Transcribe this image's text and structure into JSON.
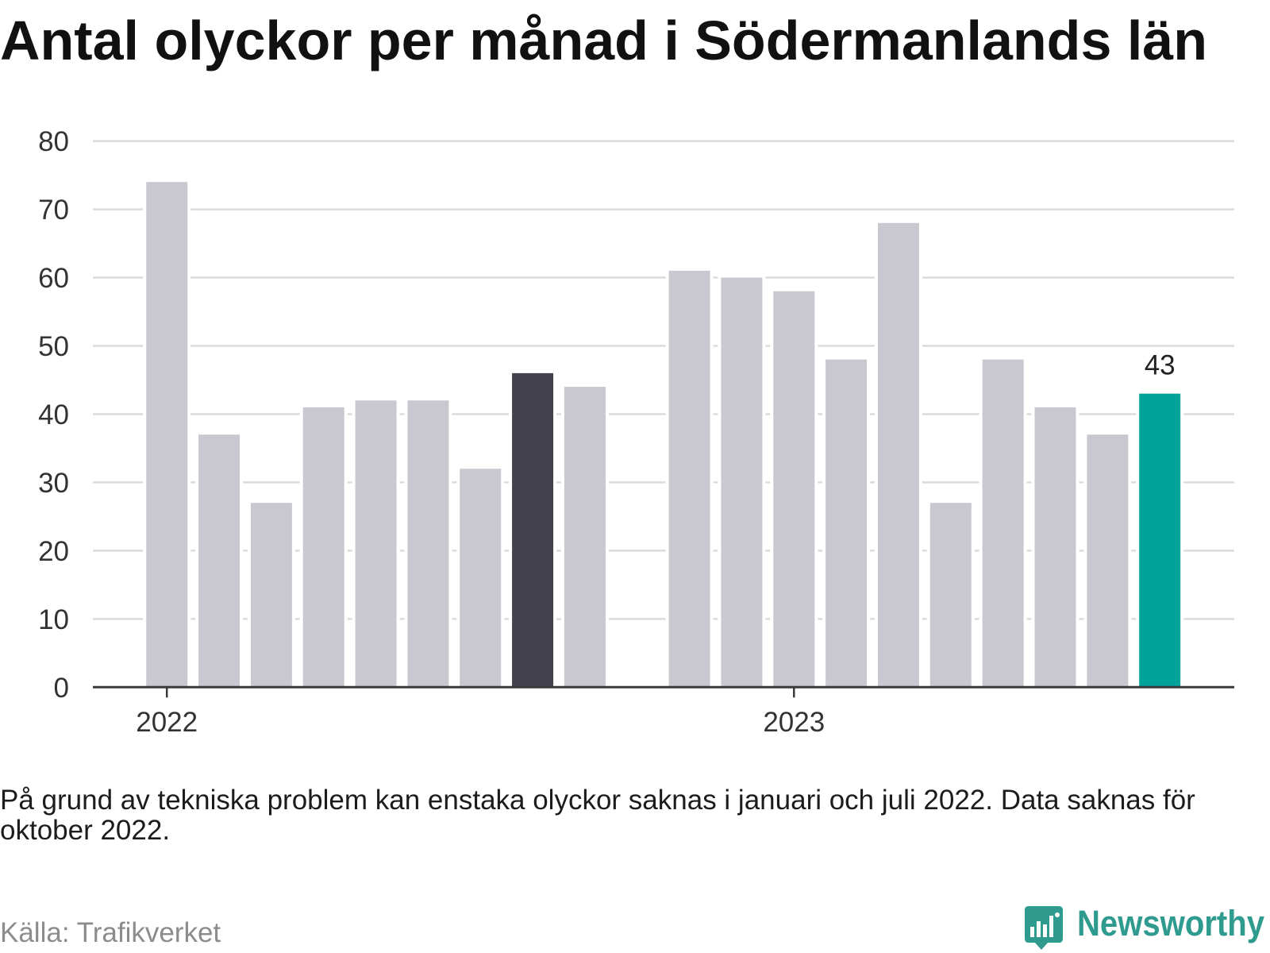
{
  "note": "På grund av tekniska problem kan enstaka olyckor saknas i januari och juli 2022. Data saknas för oktober 2022.",
  "source": "Källa: Trafikverket",
  "logo": {
    "text": "Newsworthy",
    "icon": "newsworthy-bubble-chart-icon"
  },
  "colors": {
    "grid": "#dcdcdc",
    "axis": "#3a3a3a",
    "logo": "#2f9a8e"
  },
  "chart_data": {
    "type": "bar",
    "title": "Antal olyckor per månad i Södermanlands län",
    "xlabel": "",
    "ylabel": "",
    "ylim": [
      0,
      80
    ],
    "yticks": [
      0,
      10,
      20,
      30,
      40,
      50,
      60,
      70,
      80
    ],
    "xticks": [
      {
        "label": "2022",
        "at": "2022-01"
      },
      {
        "label": "2023",
        "at": "2023-01"
      }
    ],
    "categories": [
      "2022-01",
      "2022-02",
      "2022-03",
      "2022-04",
      "2022-05",
      "2022-06",
      "2022-07",
      "2022-08",
      "2022-09",
      "2022-10",
      "2022-11",
      "2022-12",
      "2023-01",
      "2023-02",
      "2023-03",
      "2023-04",
      "2023-05",
      "2023-06",
      "2023-07",
      "2023-08"
    ],
    "values": [
      74,
      37,
      27,
      41,
      42,
      42,
      32,
      46,
      44,
      null,
      61,
      60,
      58,
      48,
      68,
      27,
      48,
      41,
      37,
      43
    ],
    "bar_color": "#c9c8d0",
    "emphasis": [
      {
        "category": "2023-08",
        "color": "#00a39a"
      },
      {
        "category": "2022-08",
        "color": "#43414c"
      }
    ],
    "data_labels": [
      {
        "category": "2023-08",
        "value": 43
      }
    ],
    "grid": true,
    "legend": "none"
  }
}
